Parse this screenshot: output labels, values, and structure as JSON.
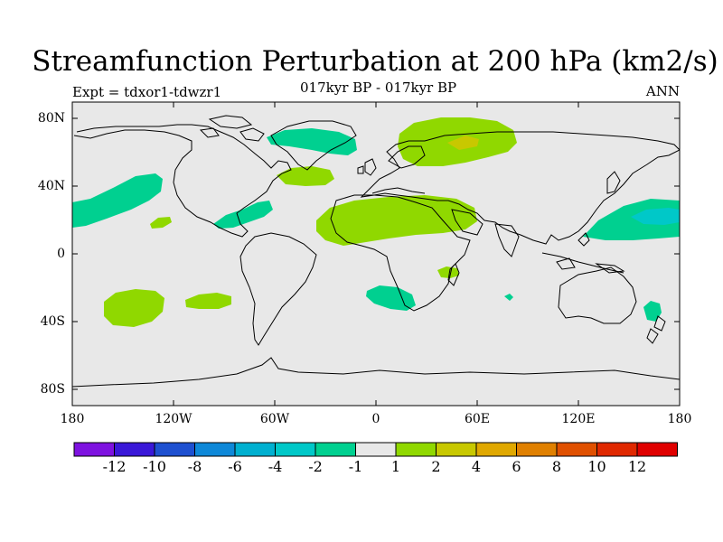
{
  "title": "Streamfunction Perturbation at 200 hPa (km2/s)",
  "subtitle": "017kyr BP - 017kyr BP",
  "expt_label": "Expt = tdxor1-tdwzr1",
  "season": "ANN",
  "lat_ticks": [
    "80N",
    "40N",
    "0",
    "40S",
    "80S"
  ],
  "lon_ticks": [
    "180",
    "120W",
    "60W",
    "0",
    "60E",
    "120E",
    "180"
  ],
  "colorbar": {
    "colors": [
      "#7e12e0",
      "#3a18d8",
      "#1e50d0",
      "#0e88d8",
      "#00b0d0",
      "#00c8c8",
      "#00d090",
      "#e8e8e8",
      "#90d800",
      "#c8c800",
      "#e0a800",
      "#e08000",
      "#e05000",
      "#e02800",
      "#e00000"
    ],
    "labels": [
      "-12",
      "-10",
      "-8",
      "-6",
      "-4",
      "-2",
      "-1",
      "1",
      "2",
      "4",
      "6",
      "8",
      "10",
      "12"
    ]
  }
}
